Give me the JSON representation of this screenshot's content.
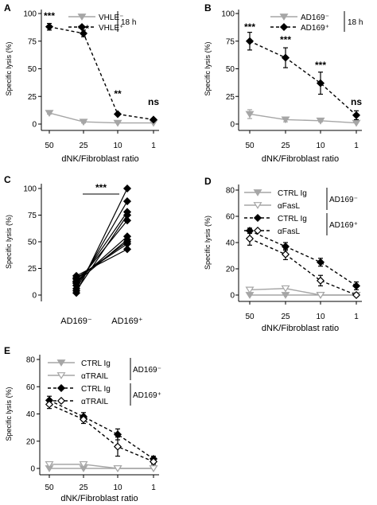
{
  "colors": {
    "grey": "#a6a6a6",
    "black": "#000000",
    "hollow": "#ffffff"
  },
  "chart_data": [
    {
      "panel": "A",
      "type": "line",
      "categories": [
        "50",
        "25",
        "10",
        "1"
      ],
      "ylabel": "Specific lysis (%)",
      "xlabel": "dNK/Fibroblast ratio",
      "ylim": [
        0,
        100
      ],
      "yticks": [
        "0",
        "25",
        "50",
        "75",
        "100"
      ],
      "legend_bracket": "18 h",
      "series": [
        {
          "name": "VHLE⁻",
          "values": [
            10,
            2,
            1,
            1
          ],
          "errors": [
            1,
            1,
            0,
            0
          ],
          "color": "grey",
          "marker": "triangle-down",
          "filled": true,
          "dashed": false
        },
        {
          "name": "VHLE⁺",
          "values": [
            88,
            82,
            9,
            4
          ],
          "errors": [
            3,
            3,
            1,
            1
          ],
          "color": "black",
          "marker": "diamond",
          "filled": true,
          "dashed": true
        }
      ],
      "annotations": [
        "***",
        "***",
        "**",
        "ns"
      ]
    },
    {
      "panel": "B",
      "type": "line",
      "categories": [
        "50",
        "25",
        "10",
        "1"
      ],
      "ylabel": "Specific lysis (%)",
      "xlabel": "dNK/Fibroblast ratio",
      "ylim": [
        0,
        100
      ],
      "yticks": [
        "0",
        "25",
        "50",
        "75",
        "100"
      ],
      "legend_bracket": "18 h",
      "series": [
        {
          "name": "AD169⁻",
          "values": [
            9,
            4,
            3,
            1
          ],
          "errors": [
            4,
            2,
            1,
            0
          ],
          "color": "grey",
          "marker": "triangle-down",
          "filled": true,
          "dashed": false
        },
        {
          "name": "AD169⁺",
          "values": [
            75,
            60,
            37,
            8
          ],
          "errors": [
            8,
            9,
            10,
            4
          ],
          "color": "black",
          "marker": "diamond",
          "filled": true,
          "dashed": true
        }
      ],
      "annotations": [
        "***",
        "***",
        "***",
        "ns"
      ]
    },
    {
      "panel": "C",
      "type": "scatter",
      "categories": [
        "AD169⁻",
        "AD169⁺"
      ],
      "ylabel": "Specific lysis (%)",
      "ylim": [
        0,
        100
      ],
      "yticks": [
        "0",
        "25",
        "50",
        "75",
        "100"
      ],
      "pairs": [
        [
          2,
          100
        ],
        [
          6,
          88
        ],
        [
          9,
          78
        ],
        [
          11,
          70
        ],
        [
          13,
          55
        ],
        [
          15,
          50
        ],
        [
          16,
          48
        ],
        [
          18,
          43
        ],
        [
          4,
          75
        ],
        [
          12,
          52
        ]
      ],
      "annotations": [
        "***"
      ]
    },
    {
      "panel": "D",
      "type": "line",
      "categories": [
        "50",
        "25",
        "10",
        "1"
      ],
      "ylabel": "Specific lysis (%)",
      "xlabel": "dNK/Fibroblast ratio",
      "ylim": [
        0,
        80
      ],
      "yticks": [
        "0",
        "20",
        "40",
        "60",
        "80"
      ],
      "group_labels": [
        "AD169⁻",
        "AD169⁺"
      ],
      "series": [
        {
          "name": "CTRL Ig",
          "values": [
            0,
            0,
            0,
            0
          ],
          "errors": [
            0,
            0,
            0,
            0
          ],
          "color": "grey",
          "marker": "triangle-down",
          "filled": true,
          "dashed": false
        },
        {
          "name": "αFasL",
          "values": [
            4,
            5,
            0,
            0
          ],
          "errors": [
            0,
            0,
            0,
            0
          ],
          "color": "grey",
          "marker": "triangle-down",
          "filled": false,
          "dashed": false
        },
        {
          "name": "CTRL Ig",
          "values": [
            49,
            37,
            25,
            7
          ],
          "errors": [
            2,
            3,
            3,
            3
          ],
          "color": "black",
          "marker": "diamond",
          "filled": true,
          "dashed": true
        },
        {
          "name": "αFasL",
          "values": [
            43,
            31,
            11,
            0
          ],
          "errors": [
            5,
            4,
            4,
            1
          ],
          "color": "black",
          "marker": "diamond",
          "filled": false,
          "dashed": true
        }
      ]
    },
    {
      "panel": "E",
      "type": "line",
      "categories": [
        "50",
        "25",
        "10",
        "1"
      ],
      "ylabel": "Specific lysis (%)",
      "xlabel": "dNK/Fibroblast ratio",
      "ylim": [
        0,
        80
      ],
      "yticks": [
        "0",
        "20",
        "40",
        "60",
        "80"
      ],
      "group_labels": [
        "AD169⁻",
        "AD169⁺"
      ],
      "series": [
        {
          "name": "CTRL Ig",
          "values": [
            0,
            0,
            0,
            0
          ],
          "errors": [
            0,
            0,
            0,
            0
          ],
          "color": "grey",
          "marker": "triangle-down",
          "filled": true,
          "dashed": false
        },
        {
          "name": "αTRAIL",
          "values": [
            3,
            3,
            0,
            0
          ],
          "errors": [
            0,
            0,
            0,
            0
          ],
          "color": "grey",
          "marker": "triangle-down",
          "filled": false,
          "dashed": false
        },
        {
          "name": "CTRL Ig",
          "values": [
            50,
            38,
            25,
            7
          ],
          "errors": [
            3,
            3,
            4,
            2
          ],
          "color": "black",
          "marker": "diamond",
          "filled": true,
          "dashed": true
        },
        {
          "name": "αTRAIL",
          "values": [
            47,
            36,
            16,
            5
          ],
          "errors": [
            3,
            3,
            7,
            2
          ],
          "color": "black",
          "marker": "diamond",
          "filled": false,
          "dashed": true
        }
      ]
    }
  ]
}
